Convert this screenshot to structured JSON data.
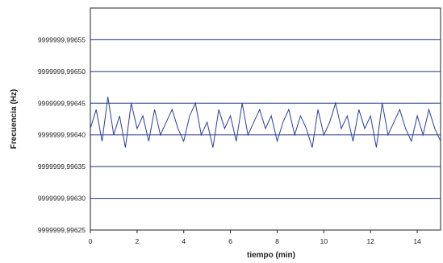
{
  "chart_data": {
    "type": "line",
    "title": "",
    "xlabel": "tiempo (min)",
    "ylabel": "Frecuencia (Hz)",
    "xlim": [
      0,
      15
    ],
    "ylim": [
      9999999.99625,
      9999999.9966
    ],
    "x_ticks": [
      0,
      2,
      4,
      6,
      8,
      10,
      12,
      14
    ],
    "x_tick_labels": [
      "0",
      "2",
      "4",
      "6",
      "8",
      "10",
      "12",
      "14"
    ],
    "y_ticks": [
      9999999.99625,
      9999999.9963,
      9999999.99635,
      9999999.9964,
      9999999.99645,
      9999999.9965,
      9999999.99655
    ],
    "y_tick_labels": [
      "9999999,99625",
      "9999999,99630",
      "9999999,99635",
      "9999999,99640",
      "9999999,99645",
      "9999999,99650",
      "9999999,99655"
    ],
    "grid": "horizontal",
    "series_color": "#2b3f9e",
    "grid_color": "#1f2f7a",
    "series": [
      {
        "x": [
          0.0,
          0.25,
          0.5,
          0.75,
          1.0,
          1.25,
          1.5,
          1.75,
          2.0,
          2.25,
          2.5,
          2.75,
          3.0,
          3.25,
          3.5,
          3.75,
          4.0,
          4.25,
          4.5,
          4.75,
          5.0,
          5.25,
          5.5,
          5.75,
          6.0,
          6.25,
          6.5,
          6.75,
          7.0,
          7.25,
          7.5,
          7.75,
          8.0,
          8.25,
          8.5,
          8.75,
          9.0,
          9.25,
          9.5,
          9.75,
          10.0,
          10.25,
          10.5,
          10.75,
          11.0,
          11.25,
          11.5,
          11.75,
          12.0,
          12.25,
          12.5,
          12.75,
          13.0,
          13.25,
          13.5,
          13.75,
          14.0,
          14.25,
          14.5,
          14.75,
          15.0
        ],
        "y": [
          9999999.99641,
          9999999.99644,
          9999999.99639,
          9999999.99646,
          9999999.9964,
          9999999.99643,
          9999999.99638,
          9999999.99645,
          9999999.99641,
          9999999.99643,
          9999999.99639,
          9999999.99644,
          9999999.9964,
          9999999.99642,
          9999999.99644,
          9999999.99641,
          9999999.99639,
          9999999.99643,
          9999999.99645,
          9999999.9964,
          9999999.99642,
          9999999.99638,
          9999999.99644,
          9999999.99641,
          9999999.99643,
          9999999.99639,
          9999999.99645,
          9999999.9964,
          9999999.99642,
          9999999.99644,
          9999999.99641,
          9999999.99643,
          9999999.99639,
          9999999.99642,
          9999999.99644,
          9999999.9964,
          9999999.99643,
          9999999.99641,
          9999999.99638,
          9999999.99644,
          9999999.9964,
          9999999.99642,
          9999999.99645,
          9999999.99641,
          9999999.99643,
          9999999.99639,
          9999999.99644,
          9999999.99641,
          9999999.99643,
          9999999.99638,
          9999999.99645,
          9999999.9964,
          9999999.99642,
          9999999.99644,
          9999999.99641,
          9999999.99639,
          9999999.99643,
          9999999.9964,
          9999999.99644,
          9999999.99641,
          9999999.99639
        ]
      }
    ]
  }
}
